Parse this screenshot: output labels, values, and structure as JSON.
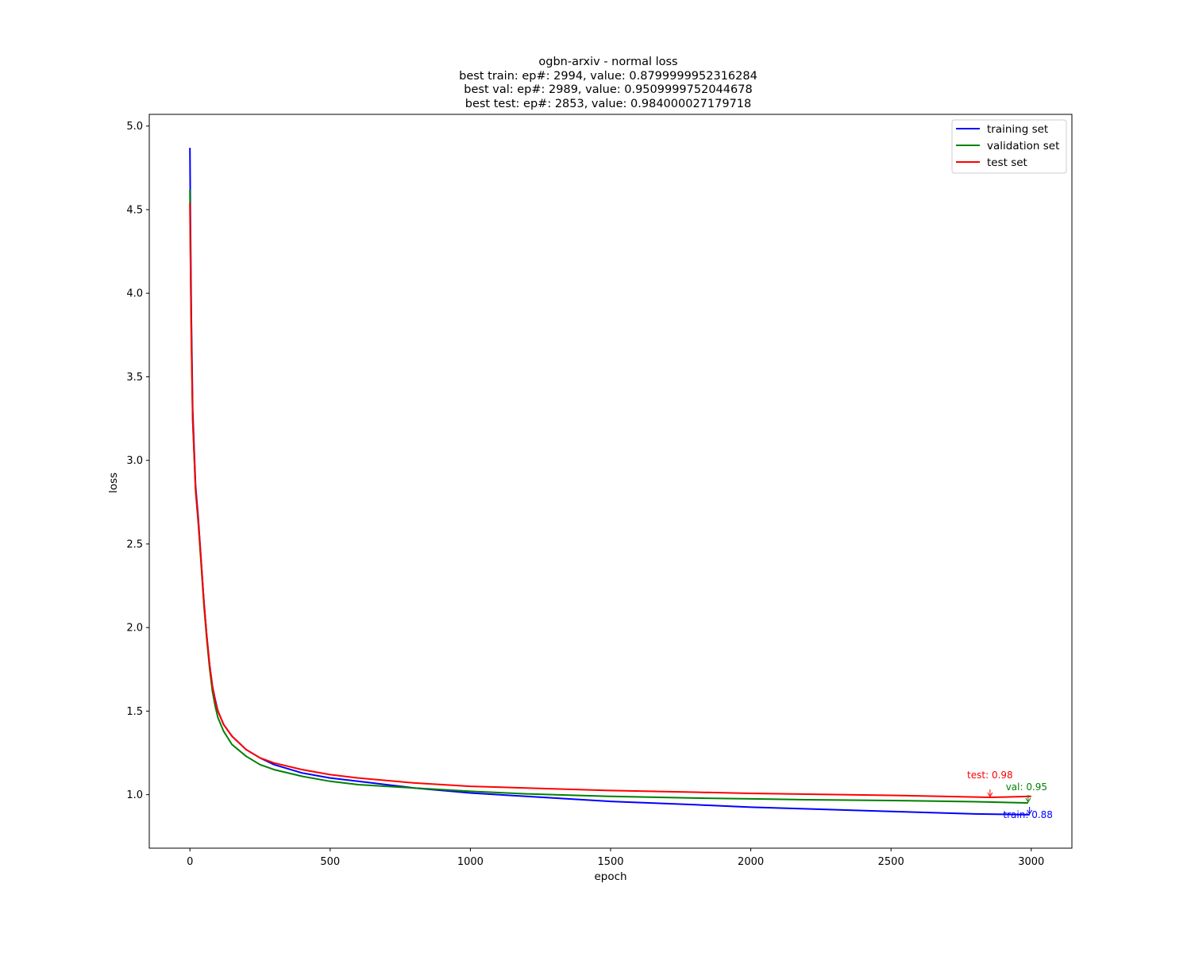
{
  "chart_data": {
    "type": "line",
    "title_lines": [
      "ogbn-arxiv - normal loss",
      "best train: ep#: 2994, value: 0.8799999952316284",
      "best val: ep#: 2989,     value: 0.9509999752044678",
      "best test: ep#: 2853,   value: 0.984000027179718"
    ],
    "xlabel": "epoch",
    "ylabel": "loss",
    "xlim": [
      -145,
      3145
    ],
    "ylim": [
      0.68,
      5.07
    ],
    "xticks": [
      0,
      500,
      1000,
      1500,
      2000,
      2500,
      3000
    ],
    "xtick_labels": [
      "0",
      "500",
      "1000",
      "1500",
      "2000",
      "2500",
      "3000"
    ],
    "yticks": [
      1.0,
      1.5,
      2.0,
      2.5,
      3.0,
      3.5,
      4.0,
      4.5,
      5.0
    ],
    "ytick_labels": [
      "1.0",
      "1.5",
      "2.0",
      "2.5",
      "3.0",
      "3.5",
      "4.0",
      "4.5",
      "5.0"
    ],
    "grid": false,
    "legend_position": "top-right",
    "series": [
      {
        "name": "training set",
        "color": "#0000ff",
        "x": [
          0,
          2,
          5,
          10,
          20,
          30,
          40,
          50,
          60,
          70,
          80,
          90,
          100,
          120,
          150,
          200,
          250,
          300,
          400,
          500,
          600,
          700,
          800,
          1000,
          1200,
          1500,
          1800,
          2000,
          2200,
          2500,
          2800,
          2994
        ],
        "y": [
          4.87,
          4.4,
          3.85,
          3.3,
          2.85,
          2.65,
          2.4,
          2.15,
          1.95,
          1.78,
          1.65,
          1.57,
          1.5,
          1.42,
          1.35,
          1.27,
          1.22,
          1.18,
          1.13,
          1.1,
          1.08,
          1.06,
          1.04,
          1.01,
          0.99,
          0.96,
          0.94,
          0.925,
          0.915,
          0.9,
          0.885,
          0.88
        ]
      },
      {
        "name": "validation set",
        "color": "#008000",
        "x": [
          0,
          2,
          5,
          10,
          20,
          30,
          40,
          50,
          60,
          70,
          80,
          90,
          100,
          120,
          150,
          200,
          250,
          300,
          400,
          500,
          600,
          700,
          800,
          1000,
          1200,
          1500,
          1800,
          2000,
          2200,
          2500,
          2800,
          2989
        ],
        "y": [
          4.62,
          4.25,
          3.75,
          3.25,
          2.82,
          2.62,
          2.38,
          2.13,
          1.93,
          1.76,
          1.62,
          1.53,
          1.46,
          1.38,
          1.3,
          1.23,
          1.18,
          1.15,
          1.11,
          1.08,
          1.06,
          1.05,
          1.04,
          1.02,
          1.005,
          0.99,
          0.98,
          0.975,
          0.97,
          0.965,
          0.958,
          0.951
        ]
      },
      {
        "name": "test set",
        "color": "#ff0000",
        "x": [
          0,
          2,
          5,
          10,
          20,
          30,
          40,
          50,
          60,
          70,
          80,
          90,
          100,
          120,
          150,
          200,
          250,
          300,
          400,
          500,
          600,
          700,
          800,
          1000,
          1200,
          1500,
          1800,
          2000,
          2200,
          2500,
          2853,
          3000
        ],
        "y": [
          4.54,
          4.2,
          3.72,
          3.24,
          2.83,
          2.63,
          2.4,
          2.15,
          1.95,
          1.78,
          1.65,
          1.56,
          1.5,
          1.42,
          1.35,
          1.27,
          1.22,
          1.19,
          1.15,
          1.12,
          1.1,
          1.085,
          1.07,
          1.05,
          1.04,
          1.025,
          1.015,
          1.008,
          1.003,
          0.996,
          0.984,
          0.99
        ]
      }
    ],
    "annotations": [
      {
        "text": "test: 0.98",
        "x": 2853,
        "y": 0.984,
        "color": "#ff0000"
      },
      {
        "text": "val: 0.95",
        "x": 2989,
        "y": 0.951,
        "color": "#008000"
      },
      {
        "text": "train: 0.88",
        "x": 2994,
        "y": 0.88,
        "color": "#0000ff"
      }
    ]
  }
}
